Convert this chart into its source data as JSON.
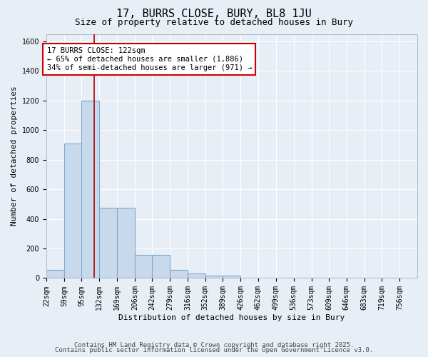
{
  "title": "17, BURRS CLOSE, BURY, BL8 1JU",
  "subtitle": "Size of property relative to detached houses in Bury",
  "xlabel": "Distribution of detached houses by size in Bury",
  "ylabel": "Number of detached properties",
  "bin_edges": [
    22,
    59,
    95,
    132,
    169,
    206,
    242,
    279,
    316,
    352,
    389,
    426,
    462,
    499,
    536,
    573,
    609,
    646,
    683,
    719,
    756
  ],
  "bar_heights": [
    55,
    910,
    1200,
    475,
    475,
    155,
    155,
    55,
    30,
    15,
    15,
    0,
    0,
    0,
    0,
    0,
    0,
    0,
    0,
    0
  ],
  "bar_color": "#c9d9ec",
  "bar_edge_color": "#7aaad0",
  "background_color": "#e8eef6",
  "grid_color": "#ffffff",
  "red_line_x": 122,
  "annotation_text": "17 BURRS CLOSE: 122sqm\n← 65% of detached houses are smaller (1,886)\n34% of semi-detached houses are larger (971) →",
  "annotation_box_color": "#ffffff",
  "annotation_box_edge_color": "#cc0000",
  "ylim": [
    0,
    1650
  ],
  "yticks": [
    0,
    200,
    400,
    600,
    800,
    1000,
    1200,
    1400,
    1600
  ],
  "footnote1": "Contains HM Land Registry data © Crown copyright and database right 2025.",
  "footnote2": "Contains public sector information licensed under the Open Government Licence v3.0.",
  "title_fontsize": 11,
  "subtitle_fontsize": 9,
  "tick_fontsize": 7,
  "label_fontsize": 8,
  "annotation_fontsize": 7.5,
  "footnote_fontsize": 6.5
}
